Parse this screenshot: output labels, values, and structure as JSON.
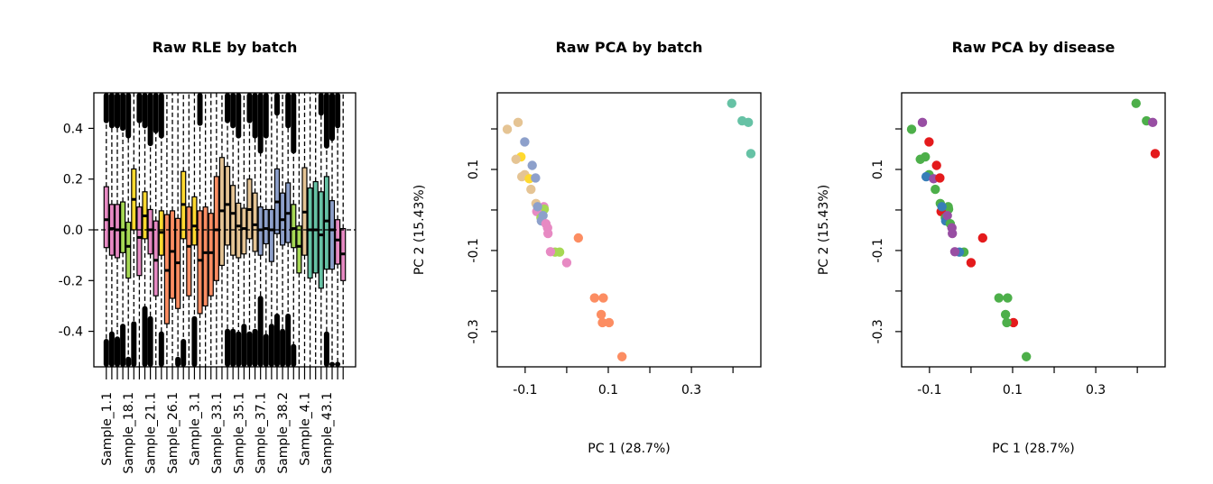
{
  "chart_data": [
    {
      "type": "boxplot",
      "title": "Raw RLE by batch",
      "xlabel": "",
      "ylabel": "",
      "ylim": [
        -0.54,
        0.54
      ],
      "yticks": [
        0.4,
        0.2,
        0.0,
        -0.2,
        -0.4
      ],
      "ytick_labels": [
        "0.4",
        "0.2",
        "0.0",
        "-0.2",
        "-0.4"
      ],
      "reference_line": 0,
      "xtick_labels": [
        "Sample_1.1",
        "Sample_18.1",
        "Sample_21.1",
        "Sample_26.1",
        "Sample_3.1",
        "Sample_33.1",
        "Sample_35.1",
        "Sample_37.1",
        "Sample_38.2",
        "Sample_4.1",
        "Sample_43.1"
      ],
      "label_every": 4,
      "boxes": [
        {
          "c": "pink",
          "q3": 0.17,
          "med": 0.04,
          "q1": -0.07,
          "out_hi": 0.42,
          "out_lo": -0.43
        },
        {
          "c": "pink",
          "q3": 0.1,
          "med": 0.005,
          "q1": -0.1,
          "out_hi": 0.4,
          "out_lo": -0.4
        },
        {
          "c": "pink",
          "q3": 0.1,
          "med": 0.0,
          "q1": -0.11,
          "out_hi": 0.4,
          "out_lo": -0.42
        },
        {
          "c": "green",
          "q3": 0.11,
          "med": 0.0,
          "q1": -0.09,
          "out_hi": 0.39,
          "out_lo": -0.37
        },
        {
          "c": "green",
          "q3": 0.03,
          "med": -0.065,
          "q1": -0.19,
          "out_hi": 0.36,
          "out_lo": -0.5
        },
        {
          "c": "yellow",
          "q3": 0.24,
          "med": 0.12,
          "q1": 0.0,
          "out_hi": null,
          "out_lo": -0.36
        },
        {
          "c": "pink",
          "q3": 0.09,
          "med": -0.03,
          "q1": -0.18,
          "out_hi": 0.42,
          "out_lo": null
        },
        {
          "c": "yellow",
          "q3": 0.15,
          "med": 0.055,
          "q1": -0.035,
          "out_hi": 0.4,
          "out_lo": -0.3
        },
        {
          "c": "pink",
          "q3": 0.08,
          "med": 0.0,
          "q1": -0.095,
          "out_hi": 0.33,
          "out_lo": -0.34
        },
        {
          "c": "pink",
          "q3": 0.035,
          "med": -0.12,
          "q1": -0.26,
          "out_hi": 0.38,
          "out_lo": null
        },
        {
          "c": "yellow",
          "q3": 0.075,
          "med": -0.01,
          "q1": -0.1,
          "out_hi": 0.36,
          "out_lo": -0.4
        },
        {
          "c": "orange",
          "q3": 0.06,
          "med": -0.16,
          "q1": -0.37,
          "out_hi": null,
          "out_lo": null
        },
        {
          "c": "orange",
          "q3": 0.075,
          "med": -0.085,
          "q1": -0.27,
          "out_hi": null,
          "out_lo": null
        },
        {
          "c": "orange",
          "q3": 0.045,
          "med": -0.13,
          "q1": -0.31,
          "out_hi": null,
          "out_lo": -0.5
        },
        {
          "c": "yellow",
          "q3": 0.23,
          "med": 0.1,
          "q1": -0.035,
          "out_hi": null,
          "out_lo": -0.43
        },
        {
          "c": "orange",
          "q3": 0.09,
          "med": -0.065,
          "q1": -0.26,
          "out_hi": null,
          "out_lo": null
        },
        {
          "c": "yellow",
          "q3": 0.13,
          "med": 0.015,
          "q1": -0.06,
          "out_hi": null,
          "out_lo": -0.34
        },
        {
          "c": "orange",
          "q3": 0.075,
          "med": -0.12,
          "q1": -0.33,
          "out_hi": 0.41,
          "out_lo": null
        },
        {
          "c": "orange",
          "q3": 0.09,
          "med": -0.09,
          "q1": -0.3,
          "out_hi": null,
          "out_lo": null
        },
        {
          "c": "orange",
          "q3": 0.065,
          "med": -0.09,
          "q1": -0.26,
          "out_hi": null,
          "out_lo": null
        },
        {
          "c": "orange",
          "q3": 0.21,
          "med": 0.0,
          "q1": -0.2,
          "out_hi": null,
          "out_lo": null
        },
        {
          "c": "tan",
          "q3": 0.285,
          "med": 0.075,
          "q1": -0.14,
          "out_hi": null,
          "out_lo": null
        },
        {
          "c": "tan",
          "q3": 0.25,
          "med": 0.1,
          "q1": -0.06,
          "out_hi": 0.42,
          "out_lo": -0.39
        },
        {
          "c": "tan",
          "q3": 0.175,
          "med": 0.065,
          "q1": -0.1,
          "out_hi": 0.4,
          "out_lo": -0.39
        },
        {
          "c": "tan",
          "q3": 0.105,
          "med": 0.015,
          "q1": -0.11,
          "out_hi": 0.36,
          "out_lo": -0.4
        },
        {
          "c": "tan",
          "q3": 0.085,
          "med": 0.005,
          "q1": -0.095,
          "out_hi": null,
          "out_lo": -0.37
        },
        {
          "c": "tan",
          "q3": 0.2,
          "med": 0.08,
          "q1": -0.035,
          "out_hi": 0.42,
          "out_lo": -0.4
        },
        {
          "c": "tan",
          "q3": 0.145,
          "med": 0.02,
          "q1": -0.085,
          "out_hi": 0.36,
          "out_lo": -0.39
        },
        {
          "c": "blue",
          "q3": 0.09,
          "med": 0.0,
          "q1": -0.1,
          "out_hi": 0.3,
          "out_lo": -0.26
        },
        {
          "c": "blue",
          "q3": 0.08,
          "med": 0.005,
          "q1": -0.055,
          "out_hi": 0.36,
          "out_lo": -0.41
        },
        {
          "c": "blue",
          "q3": 0.08,
          "med": 0.0,
          "q1": -0.125,
          "out_hi": null,
          "out_lo": -0.37
        },
        {
          "c": "blue",
          "q3": 0.24,
          "med": 0.11,
          "q1": -0.015,
          "out_hi": 0.45,
          "out_lo": -0.33
        },
        {
          "c": "blue",
          "q3": 0.145,
          "med": 0.04,
          "q1": -0.06,
          "out_hi": null,
          "out_lo": -0.39
        },
        {
          "c": "blue",
          "q3": 0.185,
          "med": 0.065,
          "q1": -0.05,
          "out_hi": 0.4,
          "out_lo": -0.33
        },
        {
          "c": "green",
          "q3": 0.1,
          "med": 0.005,
          "q1": -0.07,
          "out_hi": 0.3,
          "out_lo": -0.45
        },
        {
          "c": "green",
          "q3": 0.015,
          "med": -0.065,
          "q1": -0.17,
          "out_hi": null,
          "out_lo": null
        },
        {
          "c": "tan",
          "q3": 0.245,
          "med": 0.07,
          "q1": -0.1,
          "out_hi": null,
          "out_lo": null
        },
        {
          "c": "teal",
          "q3": 0.165,
          "med": 0.0,
          "q1": -0.19,
          "out_hi": null,
          "out_lo": null
        },
        {
          "c": "teal",
          "q3": 0.19,
          "med": 0.0,
          "q1": -0.17,
          "out_hi": null,
          "out_lo": null
        },
        {
          "c": "teal",
          "q3": 0.15,
          "med": -0.02,
          "q1": -0.23,
          "out_hi": 0.45,
          "out_lo": null
        },
        {
          "c": "teal",
          "q3": 0.21,
          "med": 0.035,
          "q1": -0.155,
          "out_hi": 0.32,
          "out_lo": -0.4
        },
        {
          "c": "blue",
          "q3": 0.115,
          "med": 0.0,
          "q1": -0.155,
          "out_hi": 0.35,
          "out_lo": -0.52
        },
        {
          "c": "pink",
          "q3": 0.04,
          "med": -0.04,
          "q1": -0.135,
          "out_hi": 0.4,
          "out_lo": -0.52
        },
        {
          "c": "pink",
          "q3": 0.005,
          "med": -0.095,
          "q1": -0.2,
          "out_hi": null,
          "out_lo": null
        }
      ]
    },
    {
      "type": "scatter",
      "title": "Raw PCA by batch",
      "color_by": "batch",
      "xlabel": "PC 1 (28.7%)",
      "ylabel": "PC 2 (15.43%)",
      "xlim": [
        -0.167,
        0.467
      ],
      "ylim": [
        -0.387,
        0.289
      ],
      "xticks": [
        -0.1,
        0.0,
        0.1,
        0.2,
        0.3,
        0.4
      ],
      "xtick_labels": [
        "-0.1",
        "",
        "0.1",
        "",
        "0.3",
        ""
      ],
      "yticks": [
        0.2,
        0.1,
        0.0,
        -0.1,
        -0.2,
        -0.3
      ],
      "ytick_labels": [
        "",
        "0.1",
        "",
        "-0.1",
        "",
        "-0.3"
      ]
    },
    {
      "type": "scatter",
      "title": "Raw PCA by disease",
      "color_by": "disease",
      "xlabel": "PC 1 (28.7%)",
      "ylabel": "PC 2 (15.43%)",
      "xlim": [
        -0.167,
        0.467
      ],
      "ylim": [
        -0.387,
        0.289
      ],
      "xticks": [
        -0.1,
        0.0,
        0.1,
        0.2,
        0.3,
        0.4
      ],
      "xtick_labels": [
        "-0.1",
        "",
        "0.1",
        "",
        "0.3",
        ""
      ],
      "yticks": [
        0.2,
        0.1,
        0.0,
        -0.1,
        -0.2,
        -0.3
      ],
      "ytick_labels": [
        "",
        "0.1",
        "",
        "-0.1",
        "",
        "-0.3"
      ]
    }
  ],
  "points": [
    {
      "pc1": -0.143,
      "pc2": 0.199,
      "batch": "tan",
      "disease": "green"
    },
    {
      "pc1": -0.117,
      "pc2": 0.216,
      "batch": "tan",
      "disease": "purple"
    },
    {
      "pc1": -0.101,
      "pc2": 0.168,
      "batch": "blue",
      "disease": "red"
    },
    {
      "pc1": -0.11,
      "pc2": 0.131,
      "batch": "yellow",
      "disease": "green"
    },
    {
      "pc1": -0.122,
      "pc2": 0.125,
      "batch": "tan",
      "disease": "green"
    },
    {
      "pc1": -0.083,
      "pc2": 0.11,
      "batch": "blue",
      "disease": "red"
    },
    {
      "pc1": -0.101,
      "pc2": 0.087,
      "batch": "tan",
      "disease": "green"
    },
    {
      "pc1": -0.108,
      "pc2": 0.082,
      "batch": "tan",
      "disease": "blue"
    },
    {
      "pc1": -0.09,
      "pc2": 0.077,
      "batch": "yellow",
      "disease": "purple"
    },
    {
      "pc1": -0.075,
      "pc2": 0.079,
      "batch": "blue",
      "disease": "red"
    },
    {
      "pc1": -0.086,
      "pc2": 0.051,
      "batch": "tan",
      "disease": "green"
    },
    {
      "pc1": -0.074,
      "pc2": 0.016,
      "batch": "tan",
      "disease": "green"
    },
    {
      "pc1": -0.055,
      "pc2": 0.008,
      "batch": "pink",
      "disease": "green"
    },
    {
      "pc1": -0.054,
      "pc2": 0.002,
      "batch": "green",
      "disease": "green"
    },
    {
      "pc1": -0.072,
      "pc2": -0.004,
      "batch": "pink",
      "disease": "red"
    },
    {
      "pc1": -0.07,
      "pc2": 0.008,
      "batch": "blue",
      "disease": "blue"
    },
    {
      "pc1": -0.062,
      "pc2": -0.019,
      "batch": "green",
      "disease": "green"
    },
    {
      "pc1": -0.061,
      "pc2": -0.027,
      "batch": "blue",
      "disease": "blue"
    },
    {
      "pc1": -0.057,
      "pc2": -0.014,
      "batch": "blue",
      "disease": "purple"
    },
    {
      "pc1": -0.05,
      "pc2": -0.034,
      "batch": "pink",
      "disease": "green"
    },
    {
      "pc1": -0.046,
      "pc2": -0.044,
      "batch": "pink",
      "disease": "purple"
    },
    {
      "pc1": -0.045,
      "pc2": -0.058,
      "batch": "pink",
      "disease": "purple"
    },
    {
      "pc1": 0.028,
      "pc2": -0.069,
      "batch": "orange",
      "disease": "red"
    },
    {
      "pc1": -0.017,
      "pc2": -0.104,
      "batch": "green",
      "disease": "green"
    },
    {
      "pc1": -0.028,
      "pc2": -0.104,
      "batch": "green",
      "disease": "blue"
    },
    {
      "pc1": -0.039,
      "pc2": -0.103,
      "batch": "pink",
      "disease": "purple"
    },
    {
      "pc1": 0.0,
      "pc2": -0.13,
      "batch": "pink",
      "disease": "red"
    },
    {
      "pc1": 0.067,
      "pc2": -0.217,
      "batch": "orange",
      "disease": "green"
    },
    {
      "pc1": 0.088,
      "pc2": -0.217,
      "batch": "orange",
      "disease": "green"
    },
    {
      "pc1": 0.083,
      "pc2": -0.258,
      "batch": "orange",
      "disease": "green"
    },
    {
      "pc1": 0.102,
      "pc2": -0.278,
      "batch": "orange",
      "disease": "red"
    },
    {
      "pc1": 0.086,
      "pc2": -0.278,
      "batch": "orange",
      "disease": "green"
    },
    {
      "pc1": 0.133,
      "pc2": -0.362,
      "batch": "orange",
      "disease": "green"
    },
    {
      "pc1": 0.397,
      "pc2": 0.263,
      "batch": "teal",
      "disease": "green"
    },
    {
      "pc1": 0.422,
      "pc2": 0.22,
      "batch": "teal",
      "disease": "green"
    },
    {
      "pc1": 0.437,
      "pc2": 0.216,
      "batch": "teal",
      "disease": "purple"
    },
    {
      "pc1": 0.443,
      "pc2": 0.139,
      "batch": "teal",
      "disease": "red"
    }
  ],
  "colors": {
    "batch": {
      "teal": "#66C2A5",
      "orange": "#FC8D62",
      "blue": "#8DA0CB",
      "pink": "#E78AC3",
      "green": "#A6D854",
      "yellow": "#FFD92F",
      "tan": "#E5C494"
    },
    "disease": {
      "red": "#E41A1C",
      "blue": "#377EB8",
      "green": "#4DAF4A",
      "purple": "#984EA3"
    }
  }
}
